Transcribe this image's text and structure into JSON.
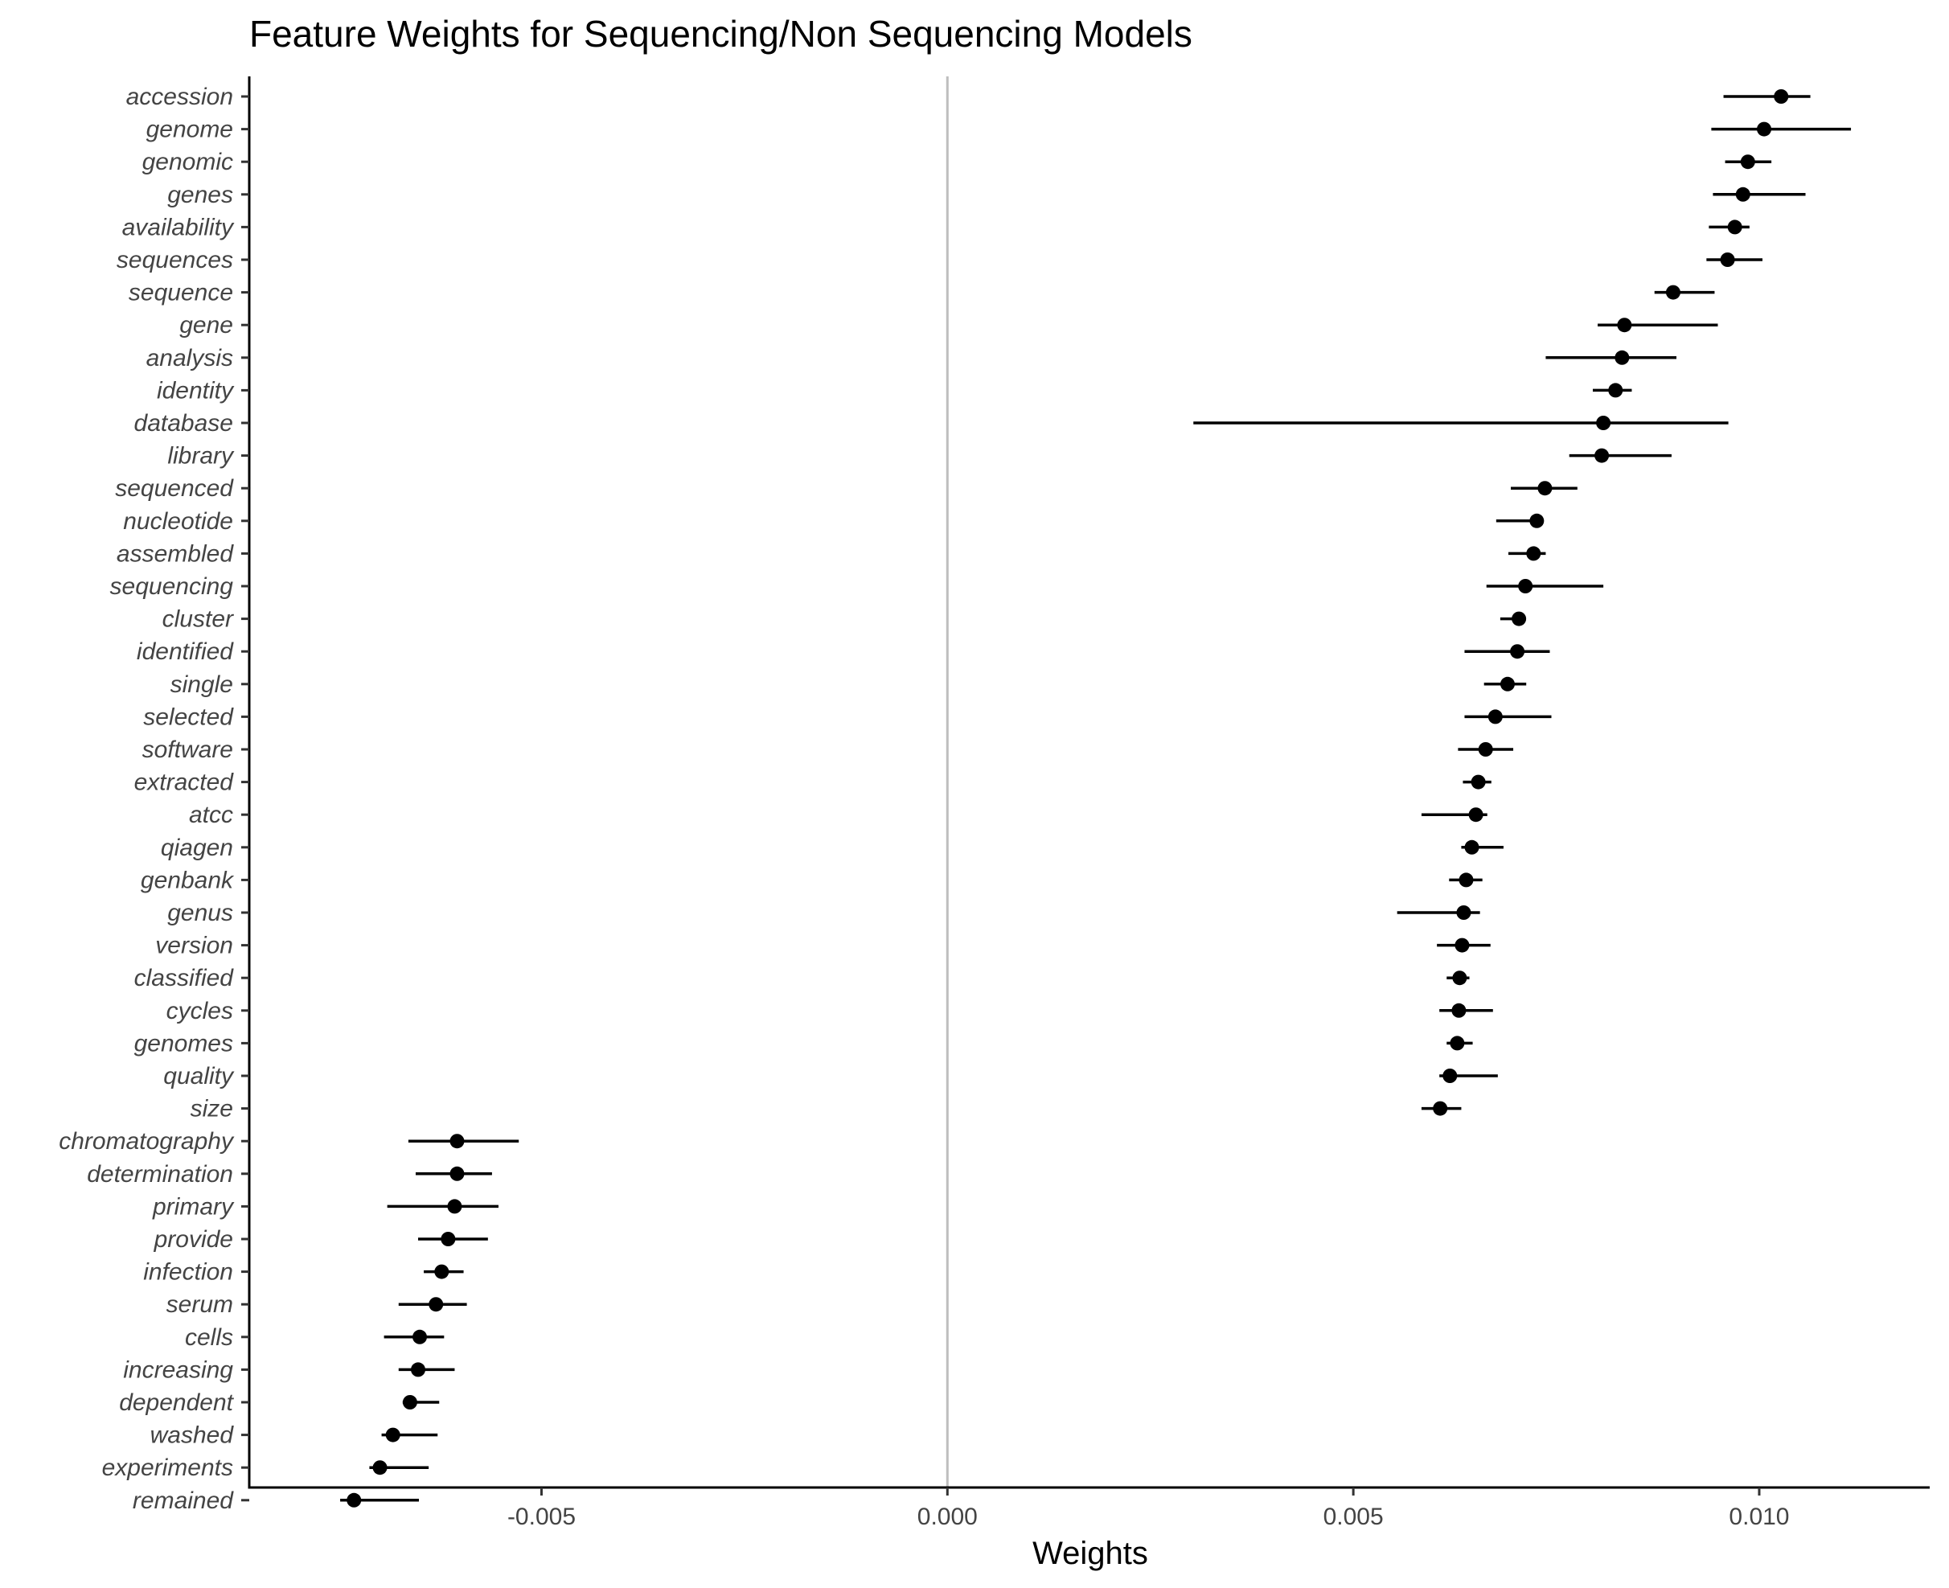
{
  "chart_data": {
    "type": "scatter",
    "subtype": "point-range",
    "title": "Feature Weights for Sequencing/Non Sequencing Models",
    "xlabel": "Weights",
    "ylabel": "",
    "xlim": [
      -0.0086,
      0.0121
    ],
    "xticks": [
      -0.005,
      0.0,
      0.005,
      0.01
    ],
    "xtick_labels": [
      "-0.005",
      "0.000",
      "0.005",
      "0.010"
    ],
    "reference_line_x": 0,
    "reference_line_color": "#bebebe",
    "point_color": "#000000",
    "grid": false,
    "features": [
      {
        "label": "accession",
        "value": 0.01027,
        "low": 0.00956,
        "high": 0.01063
      },
      {
        "label": "genome",
        "value": 0.01006,
        "low": 0.00941,
        "high": 0.01113
      },
      {
        "label": "genomic",
        "value": 0.00986,
        "low": 0.00958,
        "high": 0.01015
      },
      {
        "label": "genes",
        "value": 0.0098,
        "low": 0.00943,
        "high": 0.01057
      },
      {
        "label": "availability",
        "value": 0.0097,
        "low": 0.00938,
        "high": 0.00988
      },
      {
        "label": "sequences",
        "value": 0.00961,
        "low": 0.00935,
        "high": 0.01004
      },
      {
        "label": "sequence",
        "value": 0.00894,
        "low": 0.00871,
        "high": 0.00945
      },
      {
        "label": "gene",
        "value": 0.00834,
        "low": 0.00801,
        "high": 0.00949
      },
      {
        "label": "analysis",
        "value": 0.00831,
        "low": 0.00737,
        "high": 0.00898
      },
      {
        "label": "identity",
        "value": 0.00823,
        "low": 0.00795,
        "high": 0.00843
      },
      {
        "label": "database",
        "value": 0.00808,
        "low": 0.00303,
        "high": 0.00962
      },
      {
        "label": "library",
        "value": 0.00806,
        "low": 0.00766,
        "high": 0.00892
      },
      {
        "label": "sequenced",
        "value": 0.00736,
        "low": 0.00694,
        "high": 0.00776
      },
      {
        "label": "nucleotide",
        "value": 0.00726,
        "low": 0.00676,
        "high": 0.00729
      },
      {
        "label": "assembled",
        "value": 0.00722,
        "low": 0.00691,
        "high": 0.00737
      },
      {
        "label": "sequencing",
        "value": 0.00712,
        "low": 0.00664,
        "high": 0.00808
      },
      {
        "label": "cluster",
        "value": 0.00704,
        "low": 0.00681,
        "high": 0.00711
      },
      {
        "label": "identified",
        "value": 0.00702,
        "low": 0.00637,
        "high": 0.00742
      },
      {
        "label": "single",
        "value": 0.0069,
        "low": 0.00661,
        "high": 0.00713
      },
      {
        "label": "selected",
        "value": 0.00675,
        "low": 0.00637,
        "high": 0.00744
      },
      {
        "label": "software",
        "value": 0.00663,
        "low": 0.00629,
        "high": 0.00697
      },
      {
        "label": "extracted",
        "value": 0.00654,
        "low": 0.00635,
        "high": 0.0067
      },
      {
        "label": "atcc",
        "value": 0.00651,
        "low": 0.00584,
        "high": 0.00665
      },
      {
        "label": "qiagen",
        "value": 0.00646,
        "low": 0.00633,
        "high": 0.00685
      },
      {
        "label": "genbank",
        "value": 0.00639,
        "low": 0.00618,
        "high": 0.00659
      },
      {
        "label": "genus",
        "value": 0.00636,
        "low": 0.00554,
        "high": 0.00656
      },
      {
        "label": "version",
        "value": 0.00634,
        "low": 0.00603,
        "high": 0.00669
      },
      {
        "label": "classified",
        "value": 0.00631,
        "low": 0.00615,
        "high": 0.00643
      },
      {
        "label": "cycles",
        "value": 0.0063,
        "low": 0.00606,
        "high": 0.00672
      },
      {
        "label": "genomes",
        "value": 0.00628,
        "low": 0.00615,
        "high": 0.00647
      },
      {
        "label": "quality",
        "value": 0.00619,
        "low": 0.00606,
        "high": 0.00678
      },
      {
        "label": "size",
        "value": 0.00607,
        "low": 0.00584,
        "high": 0.00633
      },
      {
        "label": "chromatography",
        "value": -0.00604,
        "low": -0.00664,
        "high": -0.00528
      },
      {
        "label": "determination",
        "value": -0.00604,
        "low": -0.00655,
        "high": -0.00561
      },
      {
        "label": "primary",
        "value": -0.00607,
        "low": -0.0069,
        "high": -0.00553
      },
      {
        "label": "provide",
        "value": -0.00615,
        "low": -0.00652,
        "high": -0.00566
      },
      {
        "label": "infection",
        "value": -0.00623,
        "low": -0.00645,
        "high": -0.00596
      },
      {
        "label": "serum",
        "value": -0.0063,
        "low": -0.00676,
        "high": -0.00592
      },
      {
        "label": "cells",
        "value": -0.0065,
        "low": -0.00694,
        "high": -0.0062
      },
      {
        "label": "increasing",
        "value": -0.00652,
        "low": -0.00676,
        "high": -0.00607
      },
      {
        "label": "dependent",
        "value": -0.00662,
        "low": -0.00671,
        "high": -0.00626
      },
      {
        "label": "washed",
        "value": -0.00683,
        "low": -0.00697,
        "high": -0.00628
      },
      {
        "label": "experiments",
        "value": -0.00699,
        "low": -0.00712,
        "high": -0.00639
      },
      {
        "label": "remained",
        "value": -0.00731,
        "low": -0.00748,
        "high": -0.00651
      }
    ]
  }
}
